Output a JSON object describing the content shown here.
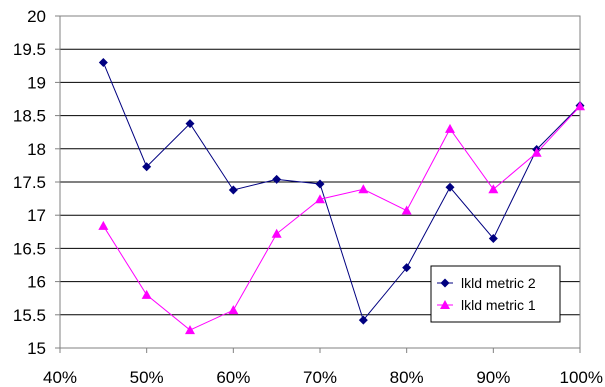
{
  "chart_data": {
    "type": "line",
    "title": "",
    "xlabel": "",
    "ylabel": "",
    "x": [
      "45%",
      "50%",
      "55%",
      "60%",
      "65%",
      "70%",
      "75%",
      "80%",
      "85%",
      "90%",
      "95%",
      "100%"
    ],
    "x_values": [
      45,
      50,
      55,
      60,
      65,
      70,
      75,
      80,
      85,
      90,
      95,
      100
    ],
    "xlim": [
      40,
      100
    ],
    "x_ticks": [
      40,
      50,
      60,
      70,
      80,
      90,
      100
    ],
    "x_tick_labels": [
      "40%",
      "50%",
      "60%",
      "70%",
      "80%",
      "90%",
      "100%"
    ],
    "ylim": [
      15,
      20
    ],
    "y_ticks": [
      15,
      15.5,
      16,
      16.5,
      17,
      17.5,
      18,
      18.5,
      19,
      19.5,
      20
    ],
    "y_tick_labels": [
      "15",
      "15.5",
      "16",
      "16.5",
      "17",
      "17.5",
      "18",
      "18.5",
      "19",
      "19.5",
      "20"
    ],
    "grid": "horizontal",
    "legend_position": "bottom-right",
    "series": [
      {
        "name": "lkld metric 2",
        "color": "#000080",
        "marker": "diamond",
        "values": [
          19.3,
          17.73,
          18.38,
          17.38,
          17.54,
          17.47,
          15.42,
          16.21,
          17.42,
          16.65,
          17.99,
          18.65
        ]
      },
      {
        "name": "lkld metric 1",
        "color": "#ff00ff",
        "marker": "triangle",
        "values": [
          16.84,
          15.8,
          15.27,
          15.57,
          16.72,
          17.24,
          17.39,
          17.07,
          18.3,
          17.39,
          17.94,
          18.64
        ]
      }
    ]
  }
}
